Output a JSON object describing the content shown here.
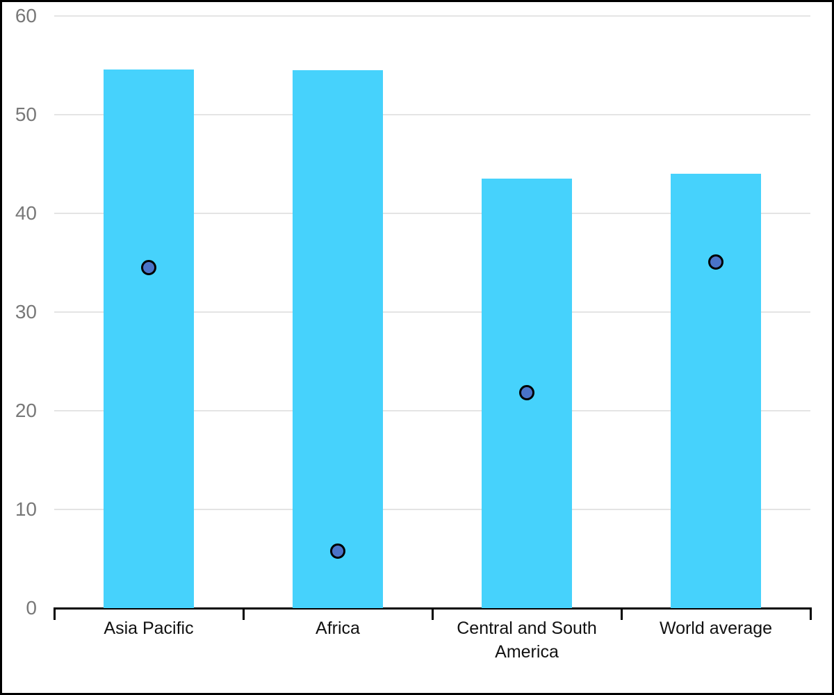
{
  "figure": {
    "background_color": "#ffffff",
    "frame_color": "#000000"
  },
  "chart_data": {
    "type": "bar",
    "title": "",
    "xlabel": "",
    "ylabel": "",
    "categories": [
      "Asia Pacific",
      "Africa",
      "Central and South America",
      "World average"
    ],
    "series": [
      {
        "name": "bars",
        "type": "bar",
        "color": "#46d2fc",
        "values": [
          54.6,
          54.5,
          43.5,
          44.0
        ]
      },
      {
        "name": "markers",
        "type": "scatter",
        "color": "#4a73c8",
        "marker_border_color": "#000000",
        "values": [
          34.5,
          5.8,
          21.8,
          35.1
        ]
      }
    ],
    "ylim": [
      0,
      60
    ],
    "yticks": [
      0,
      10,
      20,
      30,
      40,
      50,
      60
    ],
    "ytick_labels": [
      "0",
      "10",
      "20",
      "30",
      "40",
      "50",
      "60"
    ],
    "grid": true,
    "legend": "none",
    "axis_color": "#000000",
    "gridline_color": "#e4e4e4",
    "ytick_label_color": "#787878",
    "category_label_color": "#111111"
  }
}
